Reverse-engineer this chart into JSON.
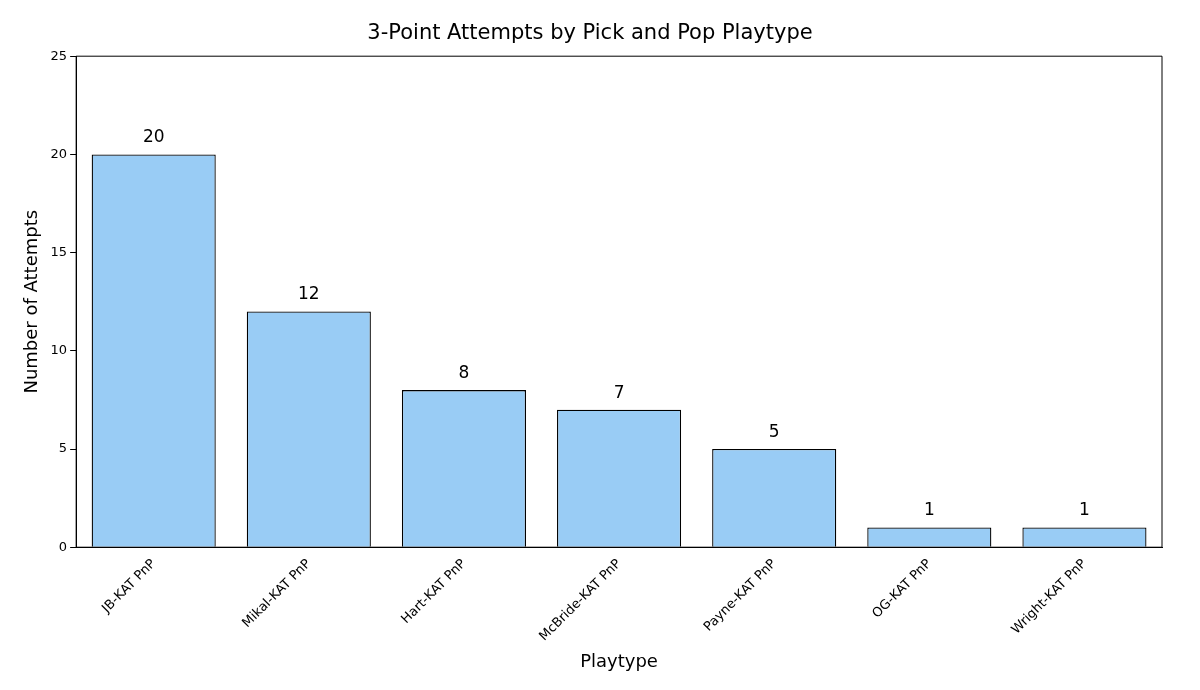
{
  "chart_data": {
    "type": "bar",
    "title": "3-Point Attempts by Pick and Pop Playtype",
    "xlabel": "Playtype",
    "ylabel": "Number of Attempts",
    "categories": [
      "JB-KAT PnP",
      "Mikal-KAT PnP",
      "Hart-KAT PnP",
      "McBride-KAT PnP",
      "Payne-KAT PnP",
      "OG-KAT PnP",
      "Wright-KAT PnP"
    ],
    "values": [
      20,
      12,
      8,
      7,
      5,
      1,
      1
    ],
    "color": "#99ccf5",
    "ylim": [
      0,
      25
    ],
    "yticks": [
      0,
      5,
      10,
      15,
      20,
      25
    ],
    "grid": false,
    "data_labels": true
  }
}
